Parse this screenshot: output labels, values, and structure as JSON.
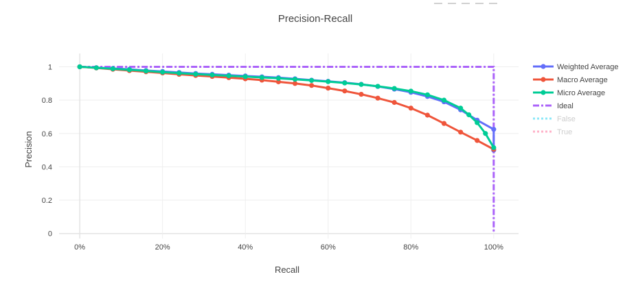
{
  "chart_data": {
    "type": "line",
    "title": "Precision-Recall",
    "xlabel": "Recall",
    "ylabel": "Precision",
    "xlim": [
      -0.05,
      1.06
    ],
    "ylim": [
      -0.03,
      1.08
    ],
    "x_ticks": [
      0,
      0.2,
      0.4,
      0.6,
      0.8,
      1.0
    ],
    "x_tick_labels": [
      "0%",
      "20%",
      "40%",
      "60%",
      "80%",
      "100%"
    ],
    "y_ticks": [
      0,
      0.2,
      0.4,
      0.6,
      0.8,
      1.0
    ],
    "y_tick_labels": [
      "0",
      "0.2",
      "0.4",
      "0.6",
      "0.8",
      "1"
    ],
    "grid": true,
    "legend_position": "right",
    "series": [
      {
        "name": "Weighted Average",
        "color": "#636efa",
        "style": "lines+markers",
        "x": [
          0,
          0.04,
          0.08,
          0.12,
          0.16,
          0.2,
          0.24,
          0.28,
          0.32,
          0.36,
          0.4,
          0.44,
          0.48,
          0.52,
          0.56,
          0.6,
          0.64,
          0.68,
          0.72,
          0.76,
          0.8,
          0.84,
          0.88,
          0.92,
          0.96,
          1.0,
          1.0
        ],
        "y": [
          1.0,
          0.995,
          0.99,
          0.985,
          0.978,
          0.972,
          0.966,
          0.96,
          0.955,
          0.95,
          0.945,
          0.94,
          0.935,
          0.928,
          0.92,
          0.913,
          0.905,
          0.895,
          0.882,
          0.866,
          0.847,
          0.822,
          0.79,
          0.742,
          0.68,
          0.625,
          0.5
        ]
      },
      {
        "name": "Macro Average",
        "color": "#ef553b",
        "style": "lines+markers",
        "x": [
          0,
          0.04,
          0.08,
          0.12,
          0.16,
          0.2,
          0.24,
          0.28,
          0.32,
          0.36,
          0.4,
          0.44,
          0.48,
          0.52,
          0.56,
          0.6,
          0.64,
          0.68,
          0.72,
          0.76,
          0.8,
          0.84,
          0.88,
          0.92,
          0.96,
          1.0
        ],
        "y": [
          1.0,
          0.993,
          0.985,
          0.977,
          0.97,
          0.963,
          0.955,
          0.948,
          0.942,
          0.935,
          0.928,
          0.92,
          0.91,
          0.9,
          0.888,
          0.872,
          0.855,
          0.835,
          0.812,
          0.786,
          0.752,
          0.71,
          0.66,
          0.608,
          0.558,
          0.505
        ]
      },
      {
        "name": "Micro Average",
        "color": "#00cc96",
        "style": "lines+markers",
        "x": [
          0,
          0.04,
          0.08,
          0.12,
          0.16,
          0.2,
          0.24,
          0.28,
          0.32,
          0.36,
          0.4,
          0.44,
          0.48,
          0.52,
          0.56,
          0.6,
          0.64,
          0.68,
          0.72,
          0.76,
          0.8,
          0.84,
          0.88,
          0.92,
          0.94,
          0.96,
          0.98,
          1.0
        ],
        "y": [
          1.0,
          0.994,
          0.988,
          0.982,
          0.975,
          0.968,
          0.962,
          0.956,
          0.951,
          0.946,
          0.941,
          0.936,
          0.931,
          0.925,
          0.918,
          0.911,
          0.903,
          0.894,
          0.883,
          0.87,
          0.854,
          0.832,
          0.8,
          0.752,
          0.712,
          0.665,
          0.6,
          0.515
        ]
      },
      {
        "name": "Ideal",
        "color": "#ab63fa",
        "style": "dashdot",
        "x": [
          0,
          1,
          1
        ],
        "y": [
          1,
          1,
          0
        ]
      },
      {
        "name": "False",
        "color": "#19d3f3",
        "style": "dotted",
        "legendonly": true,
        "x": [],
        "y": []
      },
      {
        "name": "True",
        "color": "#ff6692",
        "style": "dotted",
        "legendonly": true,
        "x": [],
        "y": []
      }
    ]
  }
}
